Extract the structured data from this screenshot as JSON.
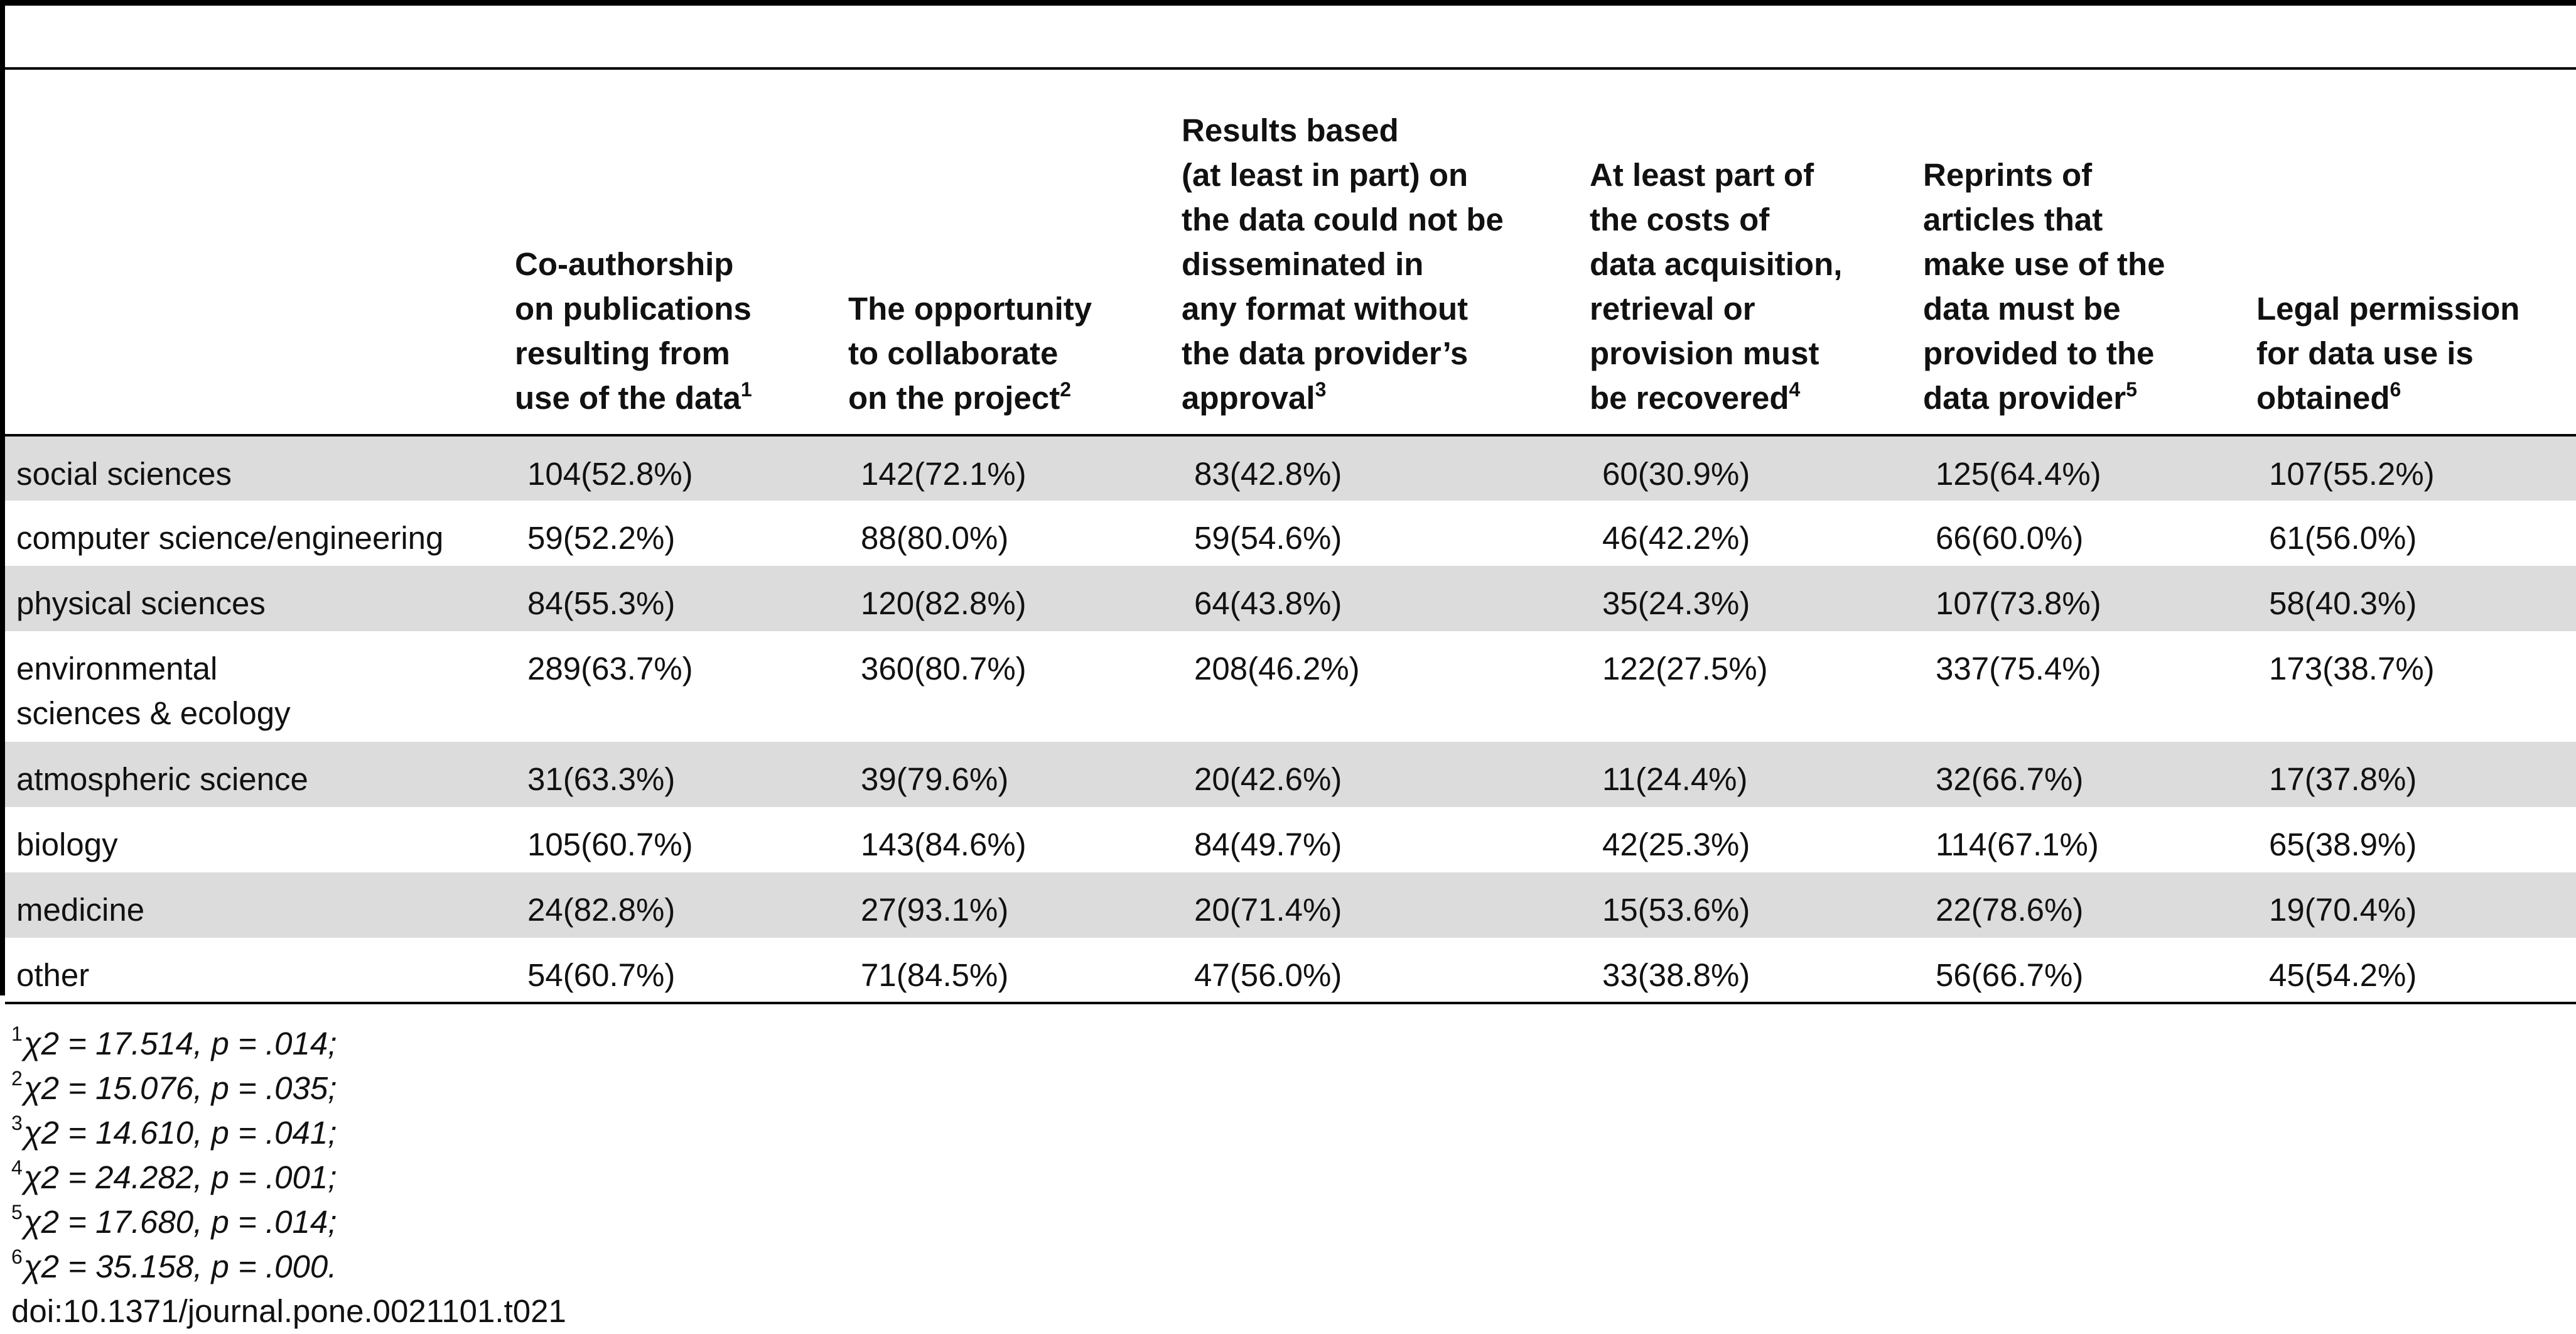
{
  "table": {
    "columns": [
      {
        "label": "",
        "sup": ""
      },
      {
        "label": "Co-authorship\non publications\nresulting from\nuse of the data",
        "sup": "1"
      },
      {
        "label": "The opportunity\nto collaborate\non the project",
        "sup": "2"
      },
      {
        "label": "Results based\n(at least in part) on\nthe data could not be\ndisseminated in\nany format without\nthe data provider’s\napproval",
        "sup": "3"
      },
      {
        "label": "At least part of\nthe costs of\ndata acquisition,\nretrieval or\nprovision must\nbe recovered",
        "sup": "4"
      },
      {
        "label": "Reprints of\narticles that\nmake use of the\ndata must be\nprovided to the\ndata provider",
        "sup": "5"
      },
      {
        "label": "Legal permission\nfor data use is\nobtained",
        "sup": "6"
      }
    ],
    "rows": [
      {
        "label": "social sciences",
        "values": [
          "104(52.8%)",
          "142(72.1%)",
          "83(42.8%)",
          "60(30.9%)",
          "125(64.4%)",
          "107(55.2%)"
        ]
      },
      {
        "label": "computer science/engineering",
        "values": [
          "59(52.2%)",
          "88(80.0%)",
          "59(54.6%)",
          "46(42.2%)",
          "66(60.0%)",
          "61(56.0%)"
        ]
      },
      {
        "label": "physical sciences",
        "values": [
          "84(55.3%)",
          "120(82.8%)",
          "64(43.8%)",
          "35(24.3%)",
          "107(73.8%)",
          "58(40.3%)"
        ]
      },
      {
        "label": "environmental\nsciences & ecology",
        "values": [
          "289(63.7%)",
          "360(80.7%)",
          "208(46.2%)",
          "122(27.5%)",
          "337(75.4%)",
          "173(38.7%)"
        ]
      },
      {
        "label": "atmospheric science",
        "values": [
          "31(63.3%)",
          "39(79.6%)",
          "20(42.6%)",
          "11(24.4%)",
          "32(66.7%)",
          "17(37.8%)"
        ]
      },
      {
        "label": "biology",
        "values": [
          "105(60.7%)",
          "143(84.6%)",
          "84(49.7%)",
          "42(25.3%)",
          "114(67.1%)",
          "65(38.9%)"
        ]
      },
      {
        "label": "medicine",
        "values": [
          "24(82.8%)",
          "27(93.1%)",
          "20(71.4%)",
          "15(53.6%)",
          "22(78.6%)",
          "19(70.4%)"
        ]
      },
      {
        "label": "other",
        "values": [
          "54(60.7%)",
          "71(84.5%)",
          "47(56.0%)",
          "33(38.8%)",
          "56(66.7%)",
          "45(54.2%)"
        ]
      }
    ]
  },
  "footnotes": [
    {
      "sup": "1",
      "text": "χ2 = 17.514, p = .014;"
    },
    {
      "sup": "2",
      "text": "χ2 = 15.076, p = .035;"
    },
    {
      "sup": "3",
      "text": "χ2 = 14.610, p = .041;"
    },
    {
      "sup": "4",
      "text": "χ2 = 24.282, p = .001;"
    },
    {
      "sup": "5",
      "text": "χ2 = 17.680, p = .014;"
    },
    {
      "sup": "6",
      "text": "χ2 = 35.158, p = .000."
    }
  ],
  "doi": "doi:10.1371/journal.pone.0021101.t021",
  "colors": {
    "rule": "#000000",
    "shaded_row": "#dcdcdc",
    "text": "#111111"
  }
}
